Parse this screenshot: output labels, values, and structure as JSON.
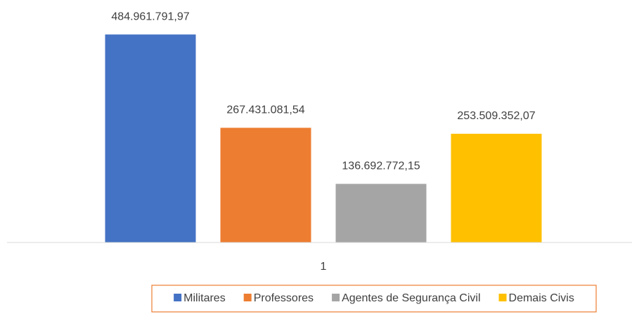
{
  "chart_data": {
    "type": "bar",
    "categories": [
      "1"
    ],
    "series": [
      {
        "name": "Militares",
        "color": "#4472C4",
        "values": [
          484961791.97
        ],
        "value_labels": [
          "484.961.791,97"
        ]
      },
      {
        "name": "Professores",
        "color": "#ED7D31",
        "values": [
          267431081.54
        ],
        "value_labels": [
          "267.431.081,54"
        ]
      },
      {
        "name": "Agentes de Segurança Civil",
        "color": "#A5A5A5",
        "values": [
          136692772.15
        ],
        "value_labels": [
          "136.692.772,15"
        ]
      },
      {
        "name": "Demais Civis",
        "color": "#FFC000",
        "values": [
          253509352.07
        ],
        "value_labels": [
          "253.509.352,07"
        ]
      }
    ],
    "ylim": [
      0,
      500000000
    ],
    "legend": "bottom"
  }
}
